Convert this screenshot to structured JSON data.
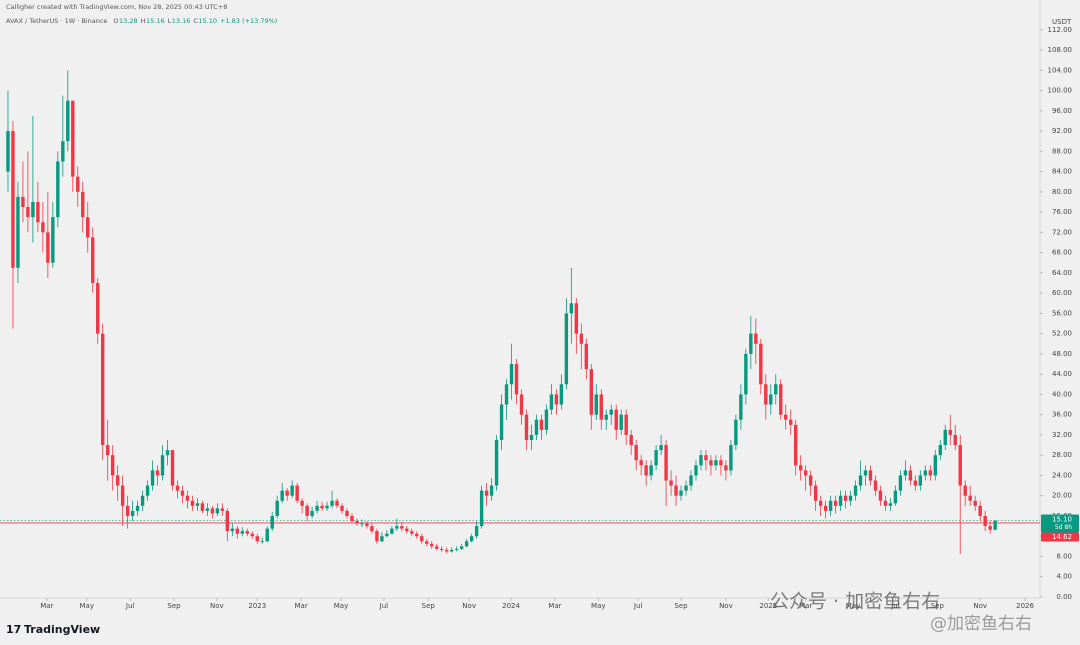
{
  "chart_data": {
    "type": "candlestick",
    "credit": "Calligher created with TradingView.com, Nov 28, 2025 00:43 UTC+8",
    "symbol": "AVAX / TetherUS · 1W · Binance",
    "ohlc_header": [
      {
        "label": "O",
        "value": "13.28"
      },
      {
        "label": "H",
        "value": "15.16"
      },
      {
        "label": "L",
        "value": "13.16"
      },
      {
        "label": "C",
        "value": "15.10"
      }
    ],
    "change": "+1.83 (+13.79%)",
    "y_unit": "USDT",
    "brand": "TradingView",
    "watermark": "公众号 · 加密鱼右右",
    "watermark_handle": "@加密鱼右右",
    "up_color": "#089981",
    "down_color": "#f23645",
    "last_price": {
      "value": 15.1,
      "label": "15.10",
      "countdown": "5d 8h"
    },
    "price_line": {
      "value": 14.62,
      "label": "14.62"
    },
    "grid": false,
    "xlim": [
      -1.6,
      207
    ],
    "ylim": [
      -0.2,
      116.3
    ],
    "xticks": [
      {
        "value": 7.8,
        "label": "Mar"
      },
      {
        "value": 15.8,
        "label": "May"
      },
      {
        "value": 24.5,
        "label": "Jul"
      },
      {
        "value": 33.3,
        "label": "Sep"
      },
      {
        "value": 41.9,
        "label": "Nov"
      },
      {
        "value": 50,
        "label": "2023"
      },
      {
        "value": 58.8,
        "label": "Mar"
      },
      {
        "value": 66.8,
        "label": "May"
      },
      {
        "value": 75.4,
        "label": "Jul"
      },
      {
        "value": 84.3,
        "label": "Sep"
      },
      {
        "value": 92.5,
        "label": "Nov"
      },
      {
        "value": 100.9,
        "label": "2024"
      },
      {
        "value": 109.7,
        "label": "Mar"
      },
      {
        "value": 118.4,
        "label": "May"
      },
      {
        "value": 126.4,
        "label": "Jul"
      },
      {
        "value": 135,
        "label": "Sep"
      },
      {
        "value": 144,
        "label": "Nov"
      },
      {
        "value": 152.5,
        "label": "2025"
      },
      {
        "value": 160,
        "label": "Mar"
      },
      {
        "value": 169.5,
        "label": "May"
      },
      {
        "value": 178,
        "label": "Jul"
      },
      {
        "value": 186.4,
        "label": "Sep"
      },
      {
        "value": 195,
        "label": "Nov"
      },
      {
        "value": 204,
        "label": "2026"
      }
    ],
    "yticks": [
      {
        "value": 0,
        "label": "0.00"
      },
      {
        "value": 4,
        "label": "4.00"
      },
      {
        "value": 8,
        "label": "8.00"
      },
      {
        "value": 12,
        "label": "12.00"
      },
      {
        "value": 16,
        "label": "16.00"
      },
      {
        "value": 20,
        "label": "20.00"
      },
      {
        "value": 24,
        "label": "24.00"
      },
      {
        "value": 28,
        "label": "28.00"
      },
      {
        "value": 32,
        "label": "32.00"
      },
      {
        "value": 36,
        "label": "36.00"
      },
      {
        "value": 40,
        "label": "40.00"
      },
      {
        "value": 44,
        "label": "44.00"
      },
      {
        "value": 48,
        "label": "48.00"
      },
      {
        "value": 52,
        "label": "52.00"
      },
      {
        "value": 56,
        "label": "56.00"
      },
      {
        "value": 60,
        "label": "60.00"
      },
      {
        "value": 64,
        "label": "64.00"
      },
      {
        "value": 68,
        "label": "68.00"
      },
      {
        "value": 72,
        "label": "72.00"
      },
      {
        "value": 76,
        "label": "76.00"
      },
      {
        "value": 80,
        "label": "80.00"
      },
      {
        "value": 84,
        "label": "84.00"
      },
      {
        "value": 88,
        "label": "88.00"
      },
      {
        "value": 92,
        "label": "92.00"
      },
      {
        "value": 96,
        "label": "96.00"
      },
      {
        "value": 100,
        "label": "100.00"
      },
      {
        "value": 104,
        "label": "104.00"
      },
      {
        "value": 108,
        "label": "108.00"
      },
      {
        "value": 112,
        "label": "112.00"
      }
    ],
    "open": [
      84,
      92,
      65,
      79,
      77,
      75,
      78,
      74,
      72,
      66,
      75,
      86,
      90,
      98,
      83,
      80,
      75,
      71,
      62,
      52,
      30,
      28,
      24,
      22,
      18,
      16,
      17,
      18,
      20,
      22,
      25,
      24,
      28,
      29,
      22,
      21,
      20,
      19,
      18,
      18.5,
      17,
      17.5,
      16.5,
      17.5,
      17,
      13,
      13.5,
      12.5,
      13,
      12.5,
      12,
      11,
      11,
      13.5,
      16,
      19,
      21,
      20,
      22,
      19,
      18,
      16,
      17,
      18,
      17.5,
      18,
      19,
      18,
      17,
      16,
      15,
      14.5,
      14.5,
      14,
      13,
      11,
      12,
      12.5,
      13.5,
      14,
      13.5,
      13,
      12.5,
      12,
      11,
      10.5,
      10,
      9.5,
      9.3,
      9,
      9.3,
      9.5,
      10,
      11,
      12,
      14,
      21,
      20,
      22,
      31,
      38,
      42,
      46,
      40,
      36,
      31,
      32,
      35,
      33,
      37,
      40,
      38,
      42,
      56,
      58,
      52,
      50,
      45,
      36,
      40,
      35,
      36,
      37,
      33,
      36,
      32,
      30,
      27,
      26,
      24,
      26,
      29,
      30,
      23,
      22,
      20,
      21,
      22,
      24,
      26,
      28,
      27,
      26,
      27,
      26,
      25,
      30,
      35,
      40,
      48,
      52,
      50,
      42,
      38,
      40,
      42,
      36,
      35,
      34,
      26,
      25,
      24,
      22,
      19,
      18,
      17,
      19,
      18,
      20,
      19,
      20,
      22,
      24,
      25,
      23,
      21,
      19,
      18,
      18.5,
      21,
      24,
      25,
      23,
      22,
      24,
      25,
      24,
      28,
      30,
      33,
      32,
      30,
      22,
      20,
      19,
      18,
      16,
      14,
      13.28
    ],
    "high": [
      100,
      94,
      82,
      86,
      88,
      95,
      82,
      78,
      80,
      78,
      88,
      99,
      104,
      98,
      85,
      82,
      78,
      73,
      63,
      54,
      35,
      30,
      26,
      24,
      20,
      19,
      19,
      21,
      23,
      27,
      26,
      30,
      31,
      29,
      23,
      22,
      21,
      20,
      19.5,
      19,
      18.5,
      18,
      18.5,
      18.5,
      17.5,
      14.5,
      14,
      13.8,
      13.5,
      13,
      12.5,
      11.8,
      14,
      16.8,
      20,
      22.5,
      21.5,
      23,
      22.5,
      19.5,
      18.5,
      17.8,
      19,
      18.8,
      18.8,
      21,
      19.5,
      18.5,
      17.5,
      16.5,
      15.5,
      15.3,
      15,
      14.5,
      13.5,
      12.8,
      13.2,
      14,
      15.5,
      14.8,
      14,
      13.5,
      13,
      12.5,
      11.5,
      11,
      10.5,
      10,
      9.8,
      9.8,
      10,
      10.5,
      11.5,
      12.5,
      15,
      22,
      22.5,
      23.5,
      32,
      40,
      43,
      50,
      47,
      41,
      37,
      34,
      36,
      36,
      38,
      42,
      41,
      44,
      59,
      65,
      59,
      54,
      51,
      46,
      42,
      41,
      37,
      38,
      38,
      37,
      37,
      33,
      31,
      28,
      27,
      27,
      30,
      32,
      31,
      25,
      24,
      22,
      23,
      25,
      27,
      29,
      29,
      28,
      28,
      28,
      27,
      31,
      36,
      42,
      49,
      55.5,
      55,
      51,
      44,
      42,
      44,
      43,
      38,
      37,
      35,
      28,
      26,
      25,
      23,
      20,
      19,
      20,
      20,
      21,
      21,
      21,
      23,
      27,
      26,
      26,
      24,
      22,
      20,
      19.5,
      22,
      25,
      27,
      26,
      24,
      25,
      26,
      26,
      29,
      31,
      34,
      36,
      34,
      32,
      23,
      22,
      20,
      19,
      17,
      15,
      15.16
    ],
    "low": [
      80,
      53,
      62,
      74,
      72,
      70,
      72,
      68,
      63,
      65,
      73,
      83,
      88,
      80,
      77,
      72,
      68,
      60,
      50,
      27,
      23,
      21,
      19,
      14,
      13.5,
      15,
      16,
      17,
      19,
      21,
      22,
      23,
      26,
      21,
      19.5,
      18.5,
      17.5,
      17,
      17,
      16.5,
      16,
      15.5,
      16,
      16,
      11,
      12,
      11.5,
      12,
      12,
      11.5,
      10.5,
      10.5,
      10.8,
      13,
      15.5,
      18.5,
      19,
      19.5,
      18.5,
      16.5,
      15,
      15.5,
      16.5,
      17,
      17,
      17.5,
      17.5,
      16.5,
      15.5,
      14.5,
      14,
      13.8,
      13.5,
      12.5,
      10.5,
      10.8,
      11.8,
      12.3,
      13,
      13,
      12.5,
      12,
      11.5,
      10.5,
      10,
      9.5,
      9.2,
      8.9,
      8.6,
      8.8,
      9,
      9.3,
      9.8,
      10.8,
      11.5,
      13.5,
      18,
      19,
      21,
      29,
      35,
      39,
      38,
      34,
      29,
      29,
      31,
      31,
      32,
      36,
      36,
      37,
      41,
      50,
      48,
      45,
      43,
      33,
      35,
      33,
      33,
      34,
      31,
      32,
      30,
      28,
      25,
      24,
      22,
      23,
      25,
      28,
      18,
      20,
      18,
      19,
      20,
      21,
      23,
      25,
      25,
      24,
      25,
      24,
      23,
      24,
      29,
      33,
      38,
      45,
      46,
      40,
      35,
      36,
      38,
      35,
      33,
      32,
      24,
      23,
      21,
      20,
      17,
      16,
      15.5,
      16,
      16.5,
      17,
      17.5,
      18,
      19,
      21,
      22,
      22,
      20,
      18,
      17,
      17,
      18,
      20,
      23,
      22,
      21,
      21,
      23,
      23,
      23,
      27,
      29,
      30,
      29,
      8.5,
      18,
      18,
      17,
      15,
      13,
      12.5,
      13.16
    ],
    "close": [
      92,
      65,
      79,
      77,
      75,
      78,
      74,
      72,
      66,
      75,
      86,
      90,
      98,
      83,
      80,
      75,
      71,
      62,
      52,
      30,
      28,
      24,
      22,
      18,
      16,
      17,
      18,
      20,
      22,
      25,
      24,
      28,
      29,
      22,
      21,
      20,
      19,
      18,
      18.5,
      17,
      17.5,
      16.5,
      17.5,
      17,
      13,
      13.5,
      12.5,
      13,
      12.5,
      12,
      11,
      11,
      13.5,
      16,
      19,
      21,
      20,
      22,
      19,
      18,
      16,
      17,
      18,
      17.5,
      18,
      19,
      18,
      17,
      16,
      15,
      14.5,
      14.5,
      14,
      13,
      11,
      12,
      12.5,
      13.5,
      14,
      13.5,
      13,
      12.5,
      12,
      11,
      10.5,
      10,
      9.5,
      9.3,
      9,
      9.3,
      9.5,
      10,
      11,
      12,
      14,
      21,
      20,
      22,
      31,
      38,
      42,
      46,
      40,
      36,
      31,
      32,
      35,
      33,
      37,
      40,
      38,
      42,
      56,
      58,
      52,
      50,
      45,
      36,
      40,
      35,
      36,
      37,
      33,
      36,
      32,
      30,
      27,
      26,
      24,
      26,
      29,
      30,
      23,
      22,
      20,
      21,
      22,
      24,
      26,
      28,
      27,
      26,
      27,
      26,
      25,
      30,
      35,
      40,
      48,
      52,
      50,
      42,
      38,
      40,
      42,
      36,
      35,
      34,
      26,
      25,
      24,
      22,
      19,
      18,
      17,
      19,
      18,
      20,
      19,
      20,
      22,
      24,
      25,
      23,
      21,
      19,
      18,
      18.5,
      21,
      24,
      25,
      23,
      22,
      24,
      25,
      24,
      28,
      30,
      33,
      32,
      30,
      22,
      20,
      19,
      18,
      16,
      14,
      13.28,
      15.1
    ]
  }
}
